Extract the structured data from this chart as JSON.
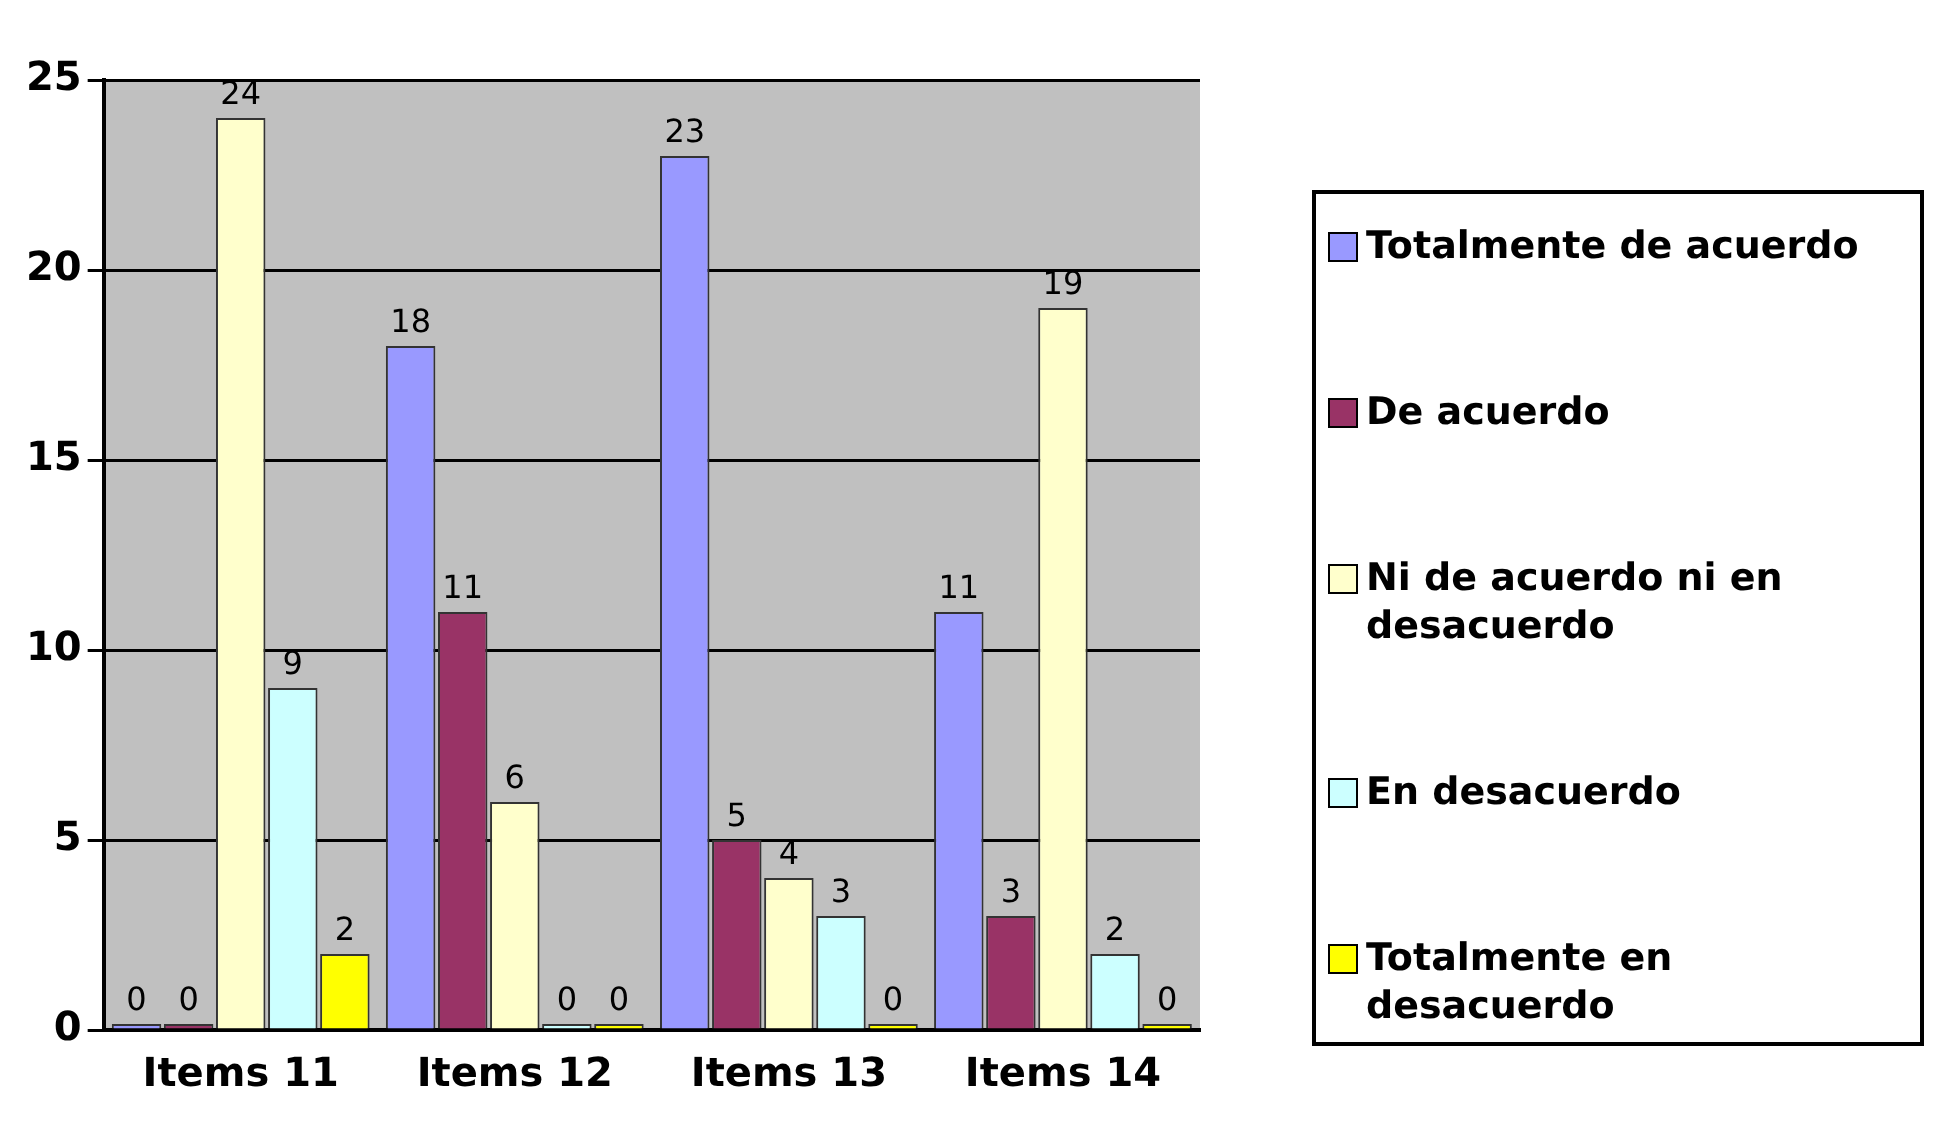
{
  "chart_data": {
    "type": "bar",
    "categories": [
      "Items 11",
      "Items 12",
      "Items 13",
      "Items 14"
    ],
    "series": [
      {
        "name": "Totalmente de acuerdo",
        "color": "#9999ff",
        "values": [
          0,
          18,
          23,
          11
        ]
      },
      {
        "name": "De acuerdo",
        "color": "#993366",
        "values": [
          0,
          11,
          5,
          3
        ]
      },
      {
        "name": "Ni de acuerdo ni en desacuerdo",
        "color": "#ffffcc",
        "values": [
          24,
          6,
          4,
          19
        ]
      },
      {
        "name": "En desacuerdo",
        "color": "#ccffff",
        "values": [
          9,
          0,
          3,
          2
        ]
      },
      {
        "name": "Totalmente en desacuerdo",
        "color": "#ffff00",
        "values": [
          2,
          0,
          0,
          0
        ]
      }
    ],
    "ylim": [
      0,
      25
    ],
    "yticks": [
      0,
      5,
      10,
      15,
      20,
      25
    ],
    "grid": "y",
    "legend": "right",
    "data_labels": true
  }
}
